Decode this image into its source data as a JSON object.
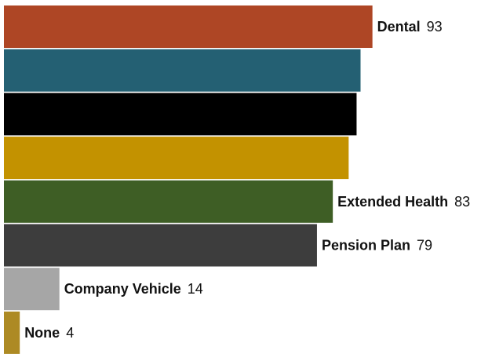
{
  "chart_data": {
    "type": "bar",
    "orientation": "horizontal",
    "title": "",
    "xlabel": "",
    "ylabel": "",
    "xlim": [
      0,
      100
    ],
    "grid": false,
    "legend": "none",
    "bars": [
      {
        "label": "Dental",
        "value": 93,
        "color": "#ae4625",
        "label_shown": true
      },
      {
        "label": "",
        "value": 90,
        "color": "#246073",
        "label_shown": false
      },
      {
        "label": "",
        "value": 89,
        "color": "#000000",
        "label_shown": false
      },
      {
        "label": "",
        "value": 87,
        "color": "#c39200",
        "label_shown": false
      },
      {
        "label": "Extended Health",
        "value": 83,
        "color": "#3e5e25",
        "label_shown": true
      },
      {
        "label": "Pension Plan",
        "value": 79,
        "color": "#3d3d3d",
        "label_shown": true
      },
      {
        "label": "Company Vehicle",
        "value": 14,
        "color": "#a6a6a6",
        "label_shown": true
      },
      {
        "label": "None",
        "value": 4,
        "color": "#ad8a24",
        "label_shown": true
      }
    ]
  }
}
